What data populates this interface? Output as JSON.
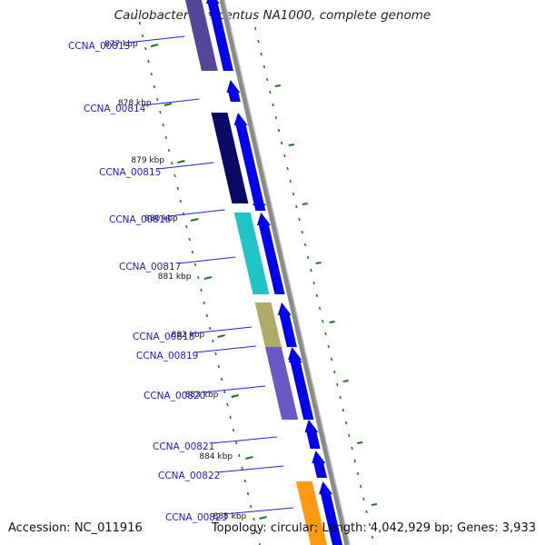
{
  "title": "Caulobacter crescentus NA1000, complete genome",
  "footer": {
    "accession": "Accession: NC_011916",
    "summary": "Topology: circular; Length: 4,042,929 bp; Genes: 3,933"
  },
  "colors": {
    "forward_strand": "#0000ee",
    "backbone": "#8a8a8a",
    "tick": "#1a7a1a",
    "label": "#1a1acc",
    "leader": "#2020dd"
  },
  "scale_labels": [
    "877 kbp",
    "878 kbp",
    "879 kbp",
    "880 kbp",
    "881 kbp",
    "882 kbp",
    "883 kbp",
    "884 kbp",
    "885 kbp"
  ],
  "genes": [
    {
      "label": "CCNA_00813",
      "color": "#55469a"
    },
    {
      "label": "CCNA_00814",
      "color": "#0000ee"
    },
    {
      "label": "CCNA_00815",
      "color": "#0a0a66"
    },
    {
      "label": "CCNA_00816",
      "color": "#0000ee"
    },
    {
      "label": "CCNA_00817",
      "color": "#1fc4c4"
    },
    {
      "label": "CCNA_00818",
      "color": "#b0aa6a"
    },
    {
      "label": "CCNA_00819",
      "color": "#6a58c4"
    },
    {
      "label": "CCNA_00820",
      "color": "#0000ee"
    },
    {
      "label": "CCNA_00821",
      "color": "#0000ee"
    },
    {
      "label": "CCNA_00822",
      "color": "#0000ee"
    },
    {
      "label": "CCNA_00823",
      "color": "#ff9a10"
    }
  ]
}
